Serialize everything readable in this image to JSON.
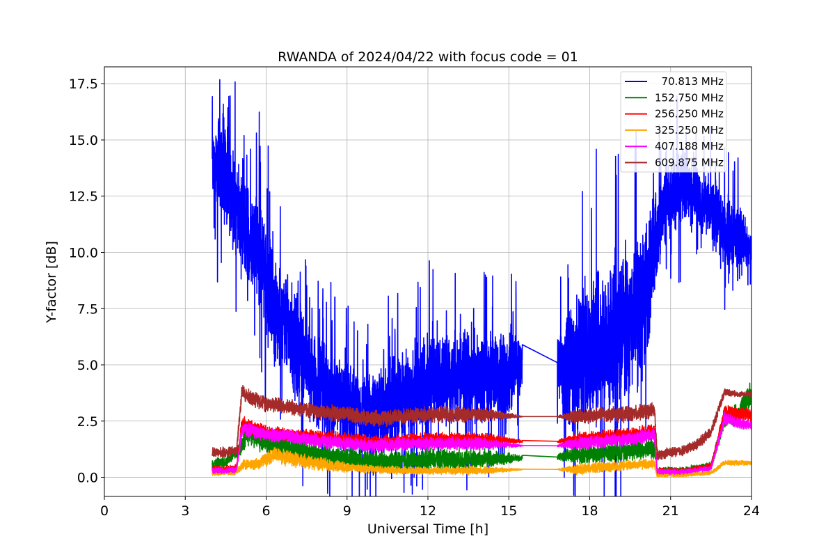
{
  "chart_data": {
    "type": "line",
    "title": "RWANDA of 2024/04/22 with focus code = 01",
    "xlabel": "Universal Time [h]",
    "ylabel": "Y-factor [dB]",
    "xlim": [
      0,
      24
    ],
    "ylim": [
      -0.85,
      18.25
    ],
    "xticks": [
      0,
      3,
      6,
      9,
      12,
      15,
      18,
      21,
      24
    ],
    "yticks": [
      0.0,
      2.5,
      5.0,
      7.5,
      10.0,
      12.5,
      15.0,
      17.5
    ],
    "xtick_labels": [
      "0",
      "3",
      "6",
      "9",
      "12",
      "15",
      "18",
      "21",
      "24"
    ],
    "ytick_labels": [
      "0.0",
      "2.5",
      "5.0",
      "7.5",
      "10.0",
      "12.5",
      "15.0",
      "17.5"
    ],
    "grid": true,
    "legend_position": "top-right",
    "gap": [
      15.5,
      16.8
    ],
    "series": [
      {
        "name": "70.813 MHz",
        "legend_label": "  70.813 MHz",
        "color": "#0000ff",
        "x": [
          4.0,
          4.3,
          4.6,
          4.9,
          5.1,
          5.5,
          5.8,
          6.2,
          6.6,
          7.0,
          7.5,
          8.0,
          8.5,
          9.0,
          9.5,
          10.0,
          10.5,
          11.0,
          11.5,
          12.0,
          12.5,
          13.0,
          13.5,
          14.0,
          14.5,
          15.0,
          15.5,
          16.8,
          17.2,
          17.6,
          18.0,
          18.5,
          19.0,
          19.5,
          20.0,
          20.5,
          21.0,
          21.5,
          22.0,
          22.5,
          23.0,
          23.5,
          24.0
        ],
        "y": [
          13.8,
          14.0,
          13.0,
          12.0,
          11.0,
          10.5,
          10.0,
          8.0,
          7.0,
          6.0,
          5.0,
          4.0,
          3.5,
          3.0,
          2.8,
          2.8,
          3.0,
          3.5,
          4.0,
          4.5,
          4.5,
          4.5,
          4.5,
          4.5,
          4.5,
          4.5,
          5.1,
          5.1,
          4.5,
          5.0,
          5.5,
          6.0,
          6.5,
          7.0,
          7.5,
          11.0,
          12.5,
          13.0,
          12.5,
          12.0,
          11.0,
          10.5,
          10.2
        ],
        "noise": [
          1.6,
          2.2,
          2.2,
          2.0,
          2.0,
          2.2,
          2.2,
          2.2,
          2.2,
          2.2,
          2.0,
          2.0,
          1.8,
          1.8,
          1.8,
          1.8,
          1.8,
          1.8,
          1.8,
          1.8,
          1.8,
          1.8,
          1.8,
          1.8,
          1.8,
          1.8,
          1.0,
          1.0,
          2.5,
          3.0,
          3.2,
          3.2,
          3.2,
          3.0,
          3.0,
          1.8,
          1.5,
          1.5,
          1.3,
          1.3,
          1.5,
          1.5,
          0.6
        ]
      },
      {
        "name": "152.750 MHz",
        "legend_label": "152.750 MHz",
        "color": "#008000",
        "x": [
          4.0,
          4.5,
          5.0,
          5.3,
          6.0,
          7.0,
          8.0,
          9.0,
          10.0,
          11.0,
          12.0,
          13.0,
          14.0,
          15.5,
          16.8,
          17.5,
          18.5,
          19.5,
          20.4,
          20.5,
          21.5,
          22.5,
          23.0,
          23.5,
          24.0
        ],
        "y": [
          0.6,
          0.7,
          1.2,
          2.0,
          1.6,
          1.3,
          1.0,
          0.8,
          0.7,
          0.7,
          0.8,
          0.8,
          0.8,
          0.85,
          0.9,
          1.0,
          1.1,
          1.2,
          1.3,
          0.3,
          0.3,
          0.5,
          2.6,
          2.8,
          3.8
        ],
        "noise": [
          0.2,
          0.2,
          0.3,
          0.5,
          0.5,
          0.5,
          0.5,
          0.4,
          0.4,
          0.4,
          0.4,
          0.4,
          0.4,
          0.1,
          0.1,
          0.4,
          0.4,
          0.4,
          0.4,
          0.15,
          0.15,
          0.15,
          0.3,
          0.4,
          0.5
        ]
      },
      {
        "name": "256.250 MHz",
        "legend_label": "256.250 MHz",
        "color": "#ff0000",
        "x": [
          4.0,
          4.5,
          4.9,
          5.1,
          5.3,
          6.0,
          7.0,
          8.0,
          9.0,
          10.0,
          11.0,
          12.0,
          13.0,
          14.0,
          15.5,
          16.8,
          17.5,
          18.5,
          19.5,
          20.4,
          20.5,
          21.5,
          22.5,
          23.0,
          23.5,
          24.0
        ],
        "y": [
          0.35,
          0.35,
          0.4,
          2.4,
          2.3,
          2.0,
          1.9,
          1.8,
          1.7,
          1.6,
          1.6,
          1.7,
          1.7,
          1.7,
          1.6,
          1.6,
          1.7,
          1.8,
          1.9,
          2.1,
          0.3,
          0.3,
          0.5,
          2.9,
          2.8,
          2.8
        ],
        "noise": [
          0.15,
          0.15,
          0.15,
          0.3,
          0.3,
          0.25,
          0.25,
          0.25,
          0.25,
          0.25,
          0.25,
          0.25,
          0.25,
          0.25,
          0.05,
          0.05,
          0.25,
          0.25,
          0.25,
          0.25,
          0.1,
          0.1,
          0.1,
          0.3,
          0.3,
          0.3
        ]
      },
      {
        "name": "325.250 MHz",
        "legend_label": "325.250 MHz",
        "color": "#ffa500",
        "x": [
          4.0,
          4.8,
          5.2,
          5.6,
          6.3,
          7.0,
          8.0,
          9.0,
          10.0,
          11.0,
          12.0,
          13.0,
          14.0,
          15.5,
          16.8,
          17.5,
          18.5,
          19.5,
          20.4,
          20.5,
          21.5,
          22.5,
          23.0,
          23.5,
          24.0
        ],
        "y": [
          0.2,
          0.2,
          0.6,
          0.55,
          1.0,
          0.8,
          0.6,
          0.45,
          0.35,
          0.3,
          0.3,
          0.3,
          0.3,
          0.35,
          0.35,
          0.35,
          0.45,
          0.55,
          0.6,
          0.1,
          0.1,
          0.2,
          0.65,
          0.65,
          0.65
        ],
        "noise": [
          0.1,
          0.1,
          0.2,
          0.2,
          0.3,
          0.3,
          0.25,
          0.2,
          0.15,
          0.15,
          0.15,
          0.15,
          0.15,
          0.02,
          0.02,
          0.2,
          0.2,
          0.2,
          0.2,
          0.08,
          0.08,
          0.08,
          0.1,
          0.1,
          0.1
        ]
      },
      {
        "name": "407.188 MHz",
        "legend_label": "407.188 MHz",
        "color": "#ff00ff",
        "x": [
          4.0,
          4.5,
          4.9,
          5.1,
          5.4,
          6.0,
          7.0,
          8.0,
          9.0,
          10.0,
          11.0,
          12.0,
          13.0,
          14.0,
          15.5,
          16.8,
          17.5,
          18.5,
          19.5,
          20.4,
          20.5,
          21.5,
          22.5,
          23.0,
          23.5,
          24.0
        ],
        "y": [
          0.3,
          0.3,
          0.35,
          2.1,
          2.1,
          1.9,
          1.8,
          1.6,
          1.5,
          1.4,
          1.5,
          1.5,
          1.5,
          1.5,
          1.4,
          1.4,
          1.5,
          1.6,
          1.7,
          1.9,
          0.25,
          0.25,
          0.4,
          2.6,
          2.4,
          2.3
        ],
        "noise": [
          0.12,
          0.12,
          0.12,
          0.3,
          0.3,
          0.25,
          0.25,
          0.25,
          0.25,
          0.25,
          0.25,
          0.25,
          0.25,
          0.25,
          0.03,
          0.03,
          0.25,
          0.25,
          0.25,
          0.25,
          0.1,
          0.1,
          0.1,
          0.25,
          0.2,
          0.2
        ]
      },
      {
        "name": "609.875 MHz",
        "legend_label": "609.875 MHz",
        "color": "#a52a2a",
        "x": [
          4.0,
          4.5,
          4.9,
          5.1,
          5.3,
          6.0,
          7.0,
          8.0,
          9.0,
          10.0,
          11.0,
          12.0,
          13.0,
          14.0,
          15.5,
          16.8,
          17.5,
          18.5,
          19.5,
          20.4,
          20.5,
          21.5,
          22.0,
          22.5,
          23.0,
          23.5,
          24.0
        ],
        "y": [
          1.1,
          1.1,
          1.2,
          3.8,
          3.6,
          3.3,
          3.1,
          2.9,
          2.8,
          2.6,
          2.7,
          2.8,
          2.8,
          2.8,
          2.7,
          2.7,
          2.7,
          2.8,
          2.8,
          3.0,
          1.0,
          1.2,
          1.5,
          2.0,
          3.8,
          3.7,
          3.7
        ],
        "noise": [
          0.2,
          0.2,
          0.2,
          0.3,
          0.3,
          0.3,
          0.3,
          0.3,
          0.3,
          0.3,
          0.3,
          0.3,
          0.3,
          0.3,
          0.02,
          0.02,
          0.3,
          0.3,
          0.3,
          0.3,
          0.2,
          0.2,
          0.2,
          0.2,
          0.15,
          0.1,
          0.1
        ]
      }
    ]
  }
}
